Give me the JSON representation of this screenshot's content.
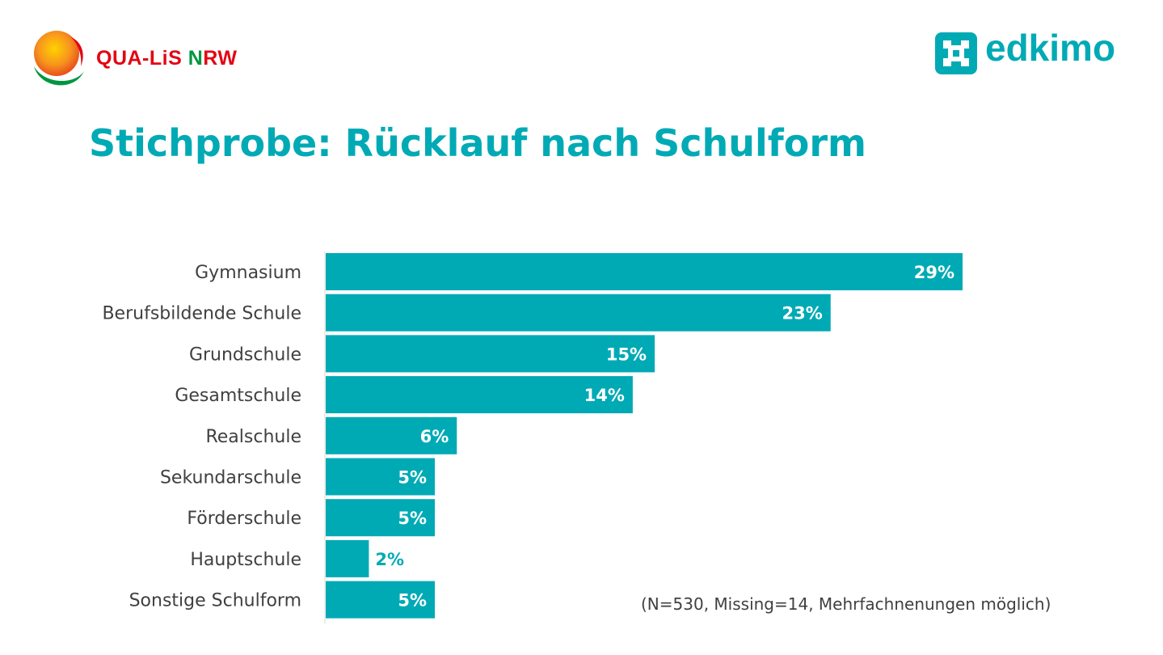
{
  "header": {
    "left_logo": {
      "segments": [
        {
          "text": "QUA-LiS",
          "color": "#e30613"
        },
        {
          "text": " N",
          "color": "#009640"
        },
        {
          "text": "RW",
          "color": "#e30613"
        }
      ],
      "alt_text": "QUA-LiS NRW"
    },
    "right_logo": {
      "text": "edkimo",
      "color": "#00aab5",
      "icon": "puzzle-icon"
    }
  },
  "title": "Stichprobe: Rücklauf nach Schulform",
  "colors": {
    "accent": "#00aab5",
    "label_text": "#404040",
    "bar_label_text": "#ffffff"
  },
  "chart_data": {
    "type": "bar",
    "orientation": "horizontal",
    "categories": [
      "Gymnasium",
      "Berufsbildende Schule",
      "Grundschule",
      "Gesamtschule",
      "Realschule",
      "Sekundarschule",
      "Förderschule",
      "Hauptschule",
      "Sonstige Schulform"
    ],
    "values": [
      29,
      23,
      15,
      14,
      6,
      5,
      5,
      2,
      5
    ],
    "value_labels": [
      "29%",
      "23%",
      "15%",
      "14%",
      "6%",
      "5%",
      "5%",
      "2%",
      "5%"
    ],
    "unit": "%",
    "xlim": [
      0,
      30
    ],
    "grid": false,
    "legend": "none"
  },
  "note": "(N=530, Missing=14, Mehrfachnenungen möglich)"
}
